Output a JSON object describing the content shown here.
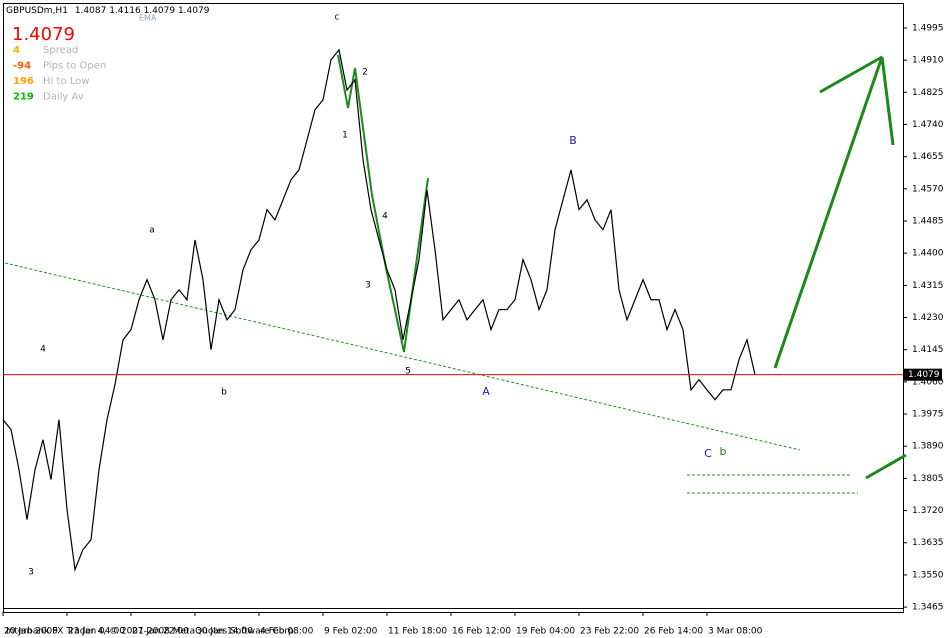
{
  "chart_data": {
    "type": "line",
    "symbol": "GBPUSDm,H1",
    "ohlc": [
      1.4087,
      1.4116,
      1.4079,
      1.4079
    ],
    "indicator": "EMA",
    "current_price": 1.4079,
    "current_price_color": "#ff0000",
    "info": [
      {
        "value": 4,
        "label": "Spread",
        "color": "#e8b400"
      },
      {
        "value": -94,
        "label": "Pips to Open",
        "color": "#ff5a00"
      },
      {
        "value": 196,
        "label": "Hi to Low",
        "color": "#ffa000"
      },
      {
        "value": 219,
        "label": "Daily Av",
        "color": "#00c000"
      }
    ],
    "categories": [
      "20 Jan 2009",
      null,
      null,
      null,
      null,
      null,
      null,
      null,
      "23 Jan 04:00",
      null,
      null,
      null,
      null,
      null,
      null,
      null,
      "27 Jan 22:00",
      null,
      null,
      null,
      null,
      null,
      null,
      null,
      "30 Jan 14:00",
      null,
      null,
      null,
      null,
      null,
      null,
      null,
      "4 Feb 08:00",
      null,
      null,
      null,
      null,
      null,
      null,
      null,
      "9 Feb 02:00",
      null,
      null,
      null,
      null,
      null,
      null,
      null,
      "11 Feb 18:00",
      null,
      null,
      null,
      null,
      null,
      null,
      null,
      "16 Feb 12:00",
      null,
      null,
      null,
      null,
      null,
      null,
      null,
      "19 Feb 04:00",
      null,
      null,
      null,
      null,
      null,
      null,
      null,
      "23 Feb 22:00",
      null,
      null,
      null,
      null,
      null,
      null,
      null,
      "26 Feb 14:00",
      null,
      null,
      null,
      null,
      null,
      null,
      null,
      "3 Mar 08:00",
      null,
      null,
      null,
      null,
      null,
      null
    ],
    "values": [
      1.396,
      1.3934,
      1.3828,
      1.3696,
      1.3828,
      1.3907,
      1.3802,
      1.396,
      1.3723,
      1.3564,
      1.3617,
      1.3643,
      1.3828,
      1.396,
      1.4053,
      1.4171,
      1.4198,
      1.4277,
      1.433,
      1.4277,
      1.4171,
      1.4277,
      1.4303,
      1.4277,
      1.4435,
      1.433,
      1.4145,
      1.4277,
      1.4224,
      1.4251,
      1.4356,
      1.4409,
      1.4435,
      1.4515,
      1.4488,
      1.4541,
      1.4594,
      1.462,
      1.4699,
      1.4779,
      1.4805,
      1.4911,
      1.4937,
      1.4831,
      1.4858,
      1.4647,
      1.4515,
      1.4435,
      1.4356,
      1.4303,
      1.4171,
      1.4277,
      1.4383,
      1.4567,
      1.4409,
      1.4224,
      1.4251,
      1.4277,
      1.4224,
      1.4251,
      1.4277,
      1.4198,
      1.4251,
      1.4251,
      1.4277,
      1.4383,
      1.433,
      1.4251,
      1.4303,
      1.4462,
      1.4541,
      1.462,
      1.4515,
      1.4541,
      1.4488,
      1.4462,
      1.4515,
      1.4303,
      1.4224,
      1.4277,
      1.433,
      1.4277,
      1.4277,
      1.4198,
      1.4251,
      1.4198,
      1.4039,
      1.4066,
      1.4039,
      1.4013,
      1.4039,
      1.4039,
      1.4119,
      1.4171,
      1.4079
    ],
    "color": "#000000",
    "ylim": [
      1.3452,
      1.5061
    ],
    "yticks": [
      1.4995,
      {
        "value": 1.491,
        "label": "1.4910"
      },
      1.4825,
      {
        "value": 1.474,
        "label": "1.4740"
      },
      1.4655,
      {
        "value": 1.457,
        "label": "1.4570"
      },
      1.4485,
      {
        "value": 1.44,
        "label": "1.4400"
      },
      1.4315,
      {
        "value": 1.423,
        "label": "1.4230"
      },
      1.4145,
      {
        "value": 1.406,
        "label": "1.4060"
      },
      1.3975,
      {
        "value": 1.389,
        "label": "1.3890"
      },
      1.3805,
      {
        "value": 1.372,
        "label": "1.3720"
      },
      1.3635,
      {
        "value": 1.355,
        "label": "1.3550"
      },
      1.3465
    ],
    "grid": false,
    "wave_labels": [
      {
        "text": "c",
        "color": "#000000"
      },
      {
        "text": "2",
        "color": "#000000"
      },
      {
        "text": "1",
        "color": "#000000"
      },
      {
        "text": "4",
        "color": "#000000"
      },
      {
        "text": "3",
        "color": "#000000"
      },
      {
        "text": "5",
        "color": "#000000"
      },
      {
        "text": "a",
        "color": "#000000"
      },
      {
        "text": "b",
        "color": "#000000"
      },
      {
        "text": "4",
        "color": "#000000"
      },
      {
        "text": "3",
        "color": "#000000"
      },
      {
        "text": "A",
        "color": "#2020b0"
      },
      {
        "text": "B",
        "color": "#2020b0"
      },
      {
        "text": "C",
        "color": "#2020b0"
      },
      {
        "text": "b",
        "color": "#208020"
      }
    ],
    "copyright": "Interbank FX Trader 4, © 2001-2008 MetaQuotes Software Corp."
  }
}
